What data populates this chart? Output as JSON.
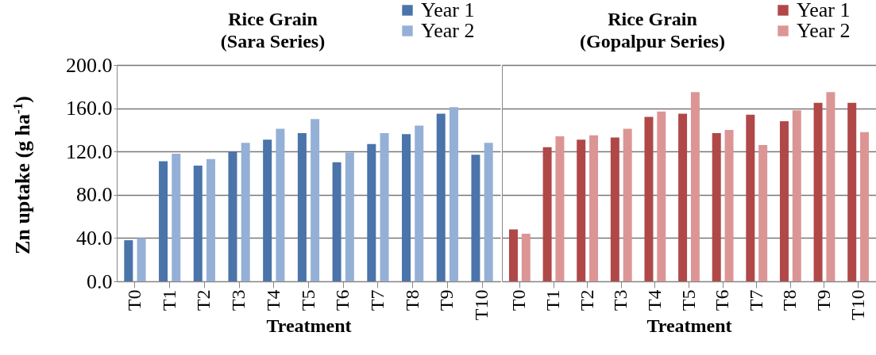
{
  "chart_data": [
    {
      "type": "bar",
      "title": "Rice Grain\n(Sara Series)",
      "xlabel": "Treatment",
      "ylabel": "Zn uptake (g ha$^{-1}$)",
      "categories": [
        "T0",
        "T1",
        "T2",
        "T3",
        "T4",
        "T5",
        "T6",
        "T7",
        "T8",
        "T9",
        "T10"
      ],
      "series": [
        {
          "name": "Year 1",
          "color": "#4a74aa",
          "values": [
            38,
            111,
            107,
            120,
            131,
            137,
            110,
            127,
            136,
            155,
            117
          ]
        },
        {
          "name": "Year 2",
          "color": "#95b0d6",
          "values": [
            40,
            118,
            113,
            128,
            141,
            150,
            119,
            137,
            144,
            161,
            128
          ]
        }
      ],
      "ylim": [
        0,
        200
      ],
      "yticks": [
        {
          "value": 0,
          "label": "0.0"
        },
        {
          "value": 40,
          "label": "40.0"
        },
        {
          "value": 80,
          "label": "80.0"
        },
        {
          "value": 120,
          "label": "120.0"
        },
        {
          "value": 160,
          "label": "160.0"
        },
        {
          "value": 200,
          "label": "200.0"
        }
      ],
      "grid": "y",
      "legend": "top right"
    },
    {
      "type": "bar",
      "title": "Rice Grain\n(Gopalpur Series)",
      "xlabel": "Treatment",
      "categories": [
        "T0",
        "T1",
        "T2",
        "T3",
        "T4",
        "T5",
        "T6",
        "T7",
        "T8",
        "T9",
        "T10"
      ],
      "series": [
        {
          "name": "Year 1",
          "color": "#b04848",
          "values": [
            48,
            124,
            131,
            133,
            152,
            155,
            137,
            154,
            148,
            165,
            165
          ]
        },
        {
          "name": "Year 2",
          "color": "#dc9595",
          "values": [
            44,
            134,
            135,
            141,
            157,
            175,
            140,
            126,
            158,
            175,
            138
          ]
        }
      ],
      "ylim": [
        0,
        200
      ],
      "yticks": [
        {
          "value": 0,
          "label": null
        },
        {
          "value": 40,
          "label": null
        },
        {
          "value": 80,
          "label": null
        },
        {
          "value": 120,
          "label": null
        },
        {
          "value": 160,
          "label": null
        },
        {
          "value": 200,
          "label": null
        }
      ],
      "grid": "y",
      "legend": "top right",
      "tick_labels": "x"
    }
  ]
}
